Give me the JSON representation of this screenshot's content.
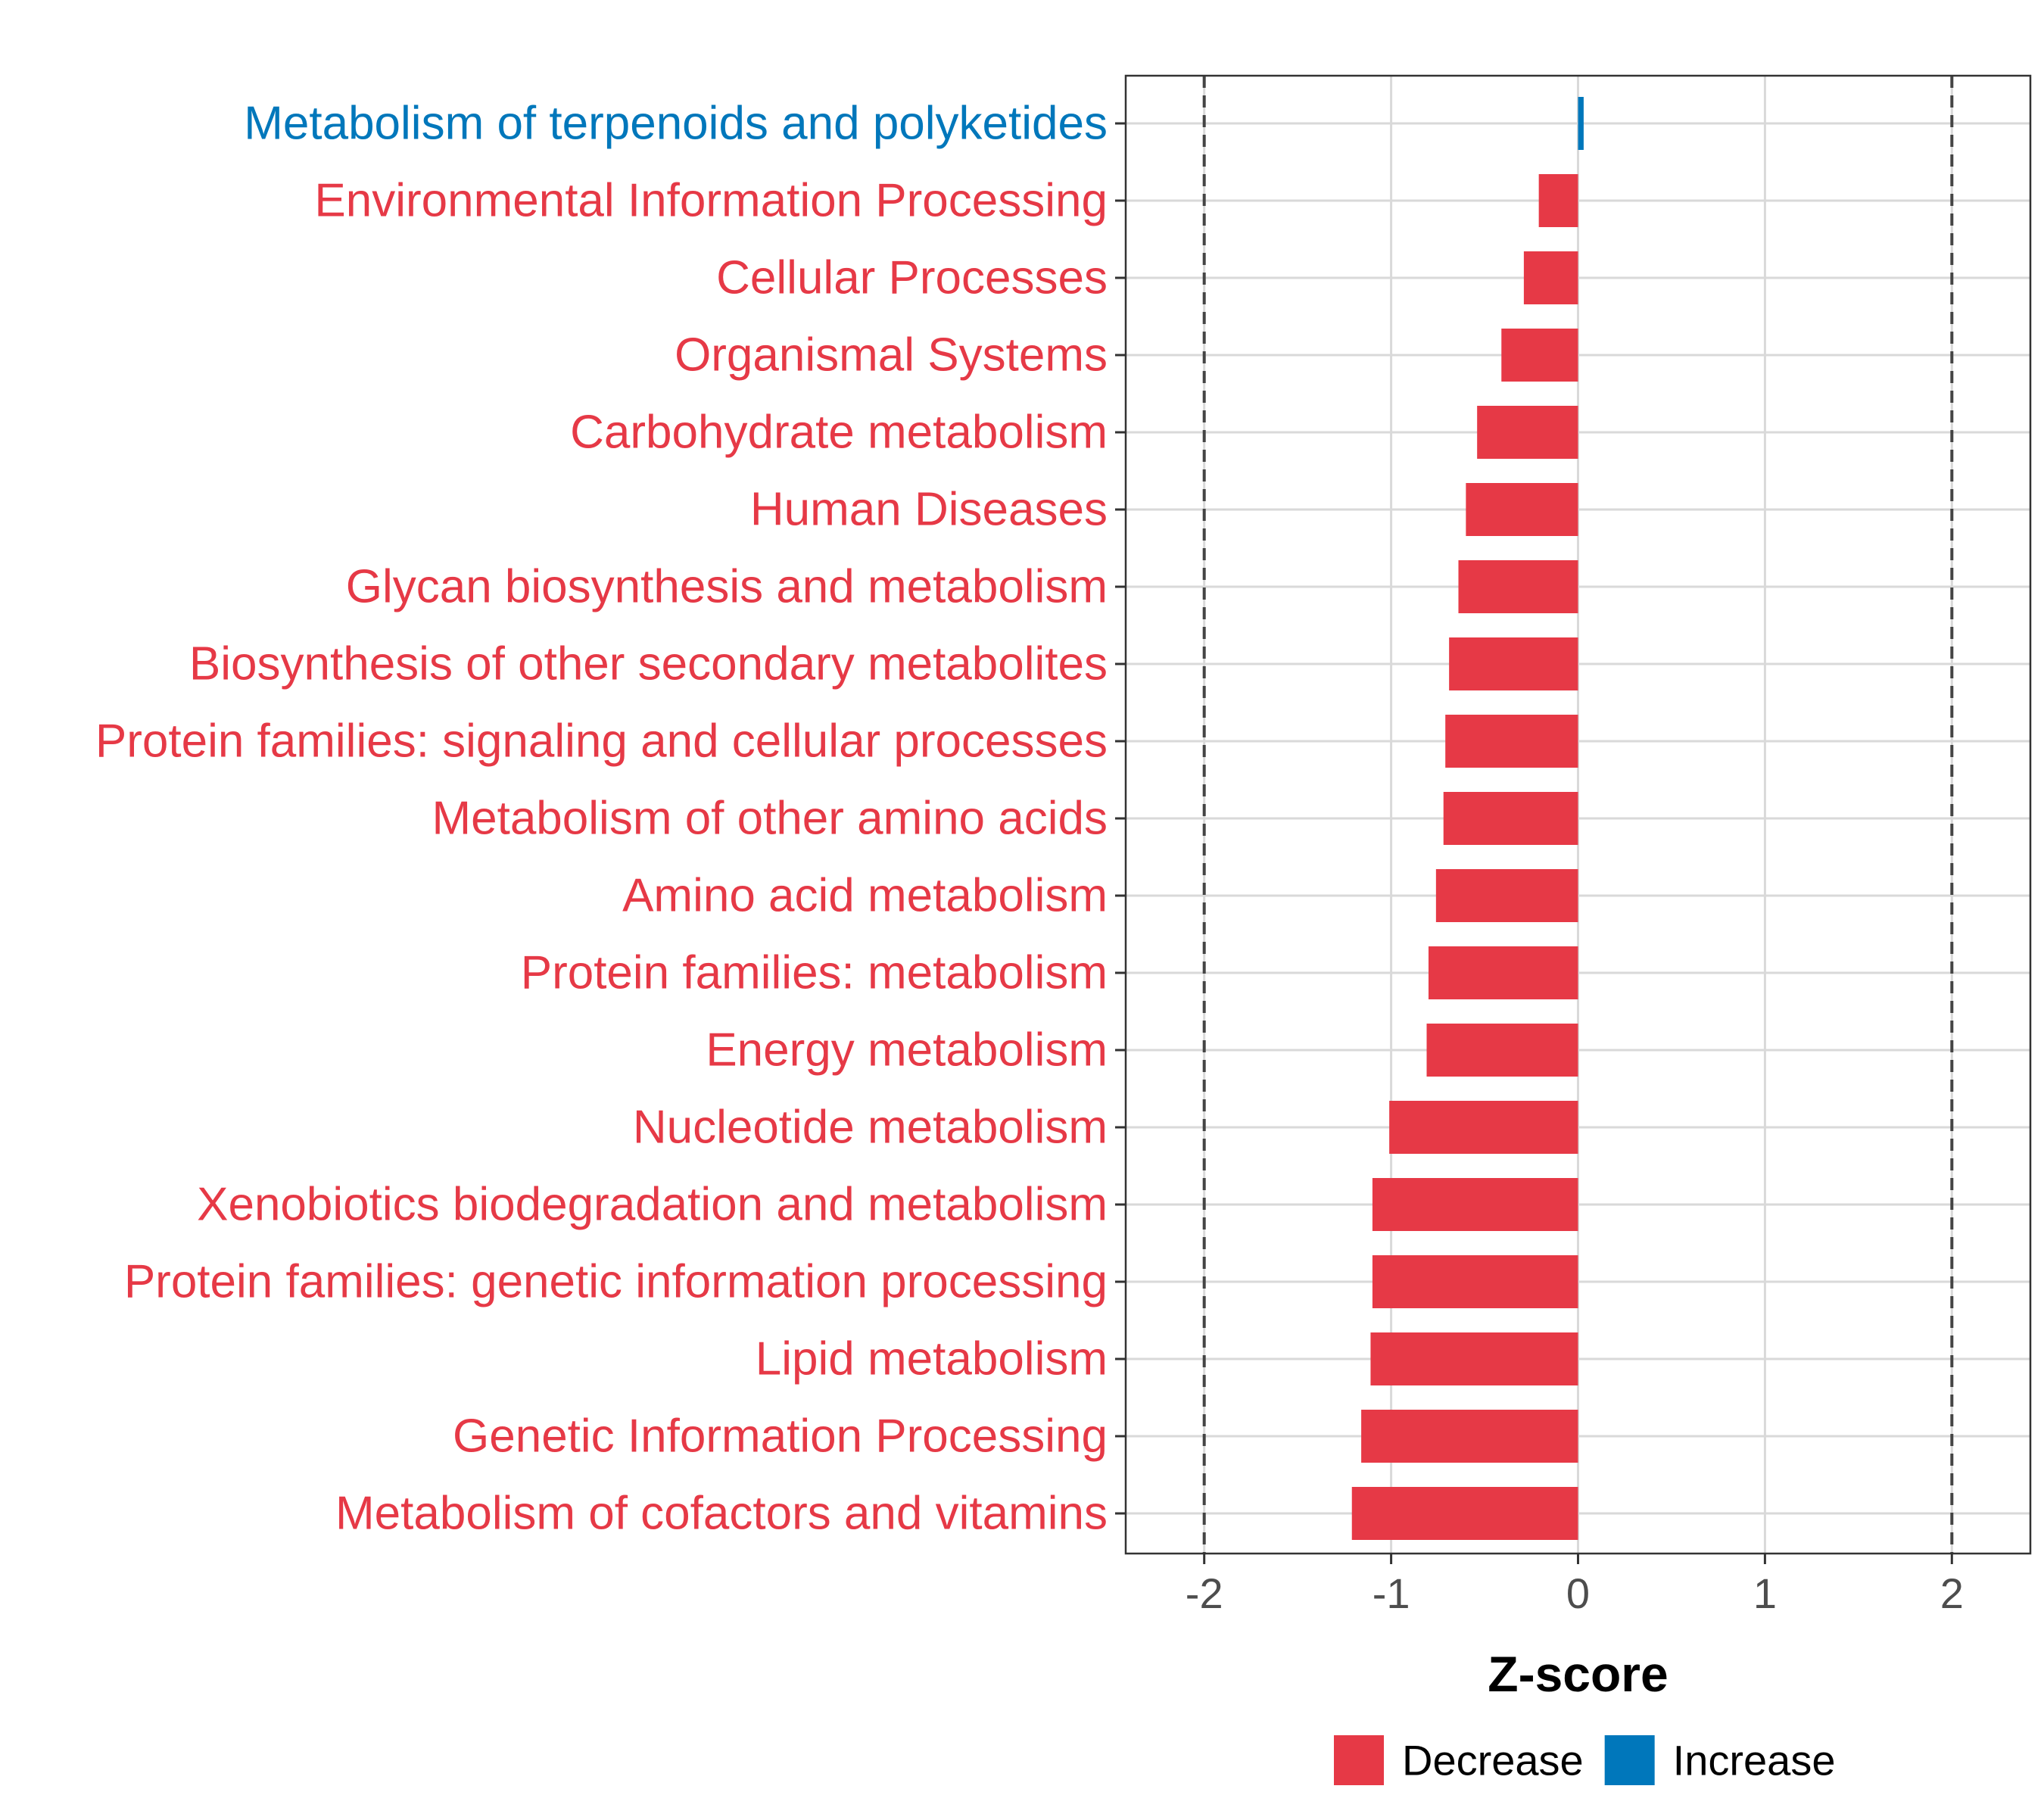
{
  "chart_data": {
    "type": "bar",
    "orientation": "horizontal",
    "title": "",
    "xlabel": "Z-score",
    "ylabel": "",
    "xlim": [
      -2.42,
      2.42
    ],
    "xticks": [
      -2,
      -1,
      0,
      1,
      2
    ],
    "xtick_labels": [
      "-2",
      "-1",
      "0",
      "1",
      "2"
    ],
    "reference_lines": [
      -2,
      2
    ],
    "grid": true,
    "categories": [
      "Metabolism of terpenoids and polyketides",
      "Environmental Information Processing",
      "Cellular Processes",
      "Organismal Systems",
      "Carbohydrate metabolism",
      "Human Diseases",
      "Glycan biosynthesis and metabolism",
      "Biosynthesis of other secondary metabolites",
      "Protein families: signaling and cellular processes",
      "Metabolism of other amino acids",
      "Amino acid metabolism",
      "Protein families: metabolism",
      "Energy metabolism",
      "Nucleotide metabolism",
      "Xenobiotics biodegradation and metabolism",
      "Protein families: genetic information processing",
      "Lipid metabolism",
      "Genetic Information Processing",
      "Metabolism of cofactors and vitamins"
    ],
    "values": [
      0.03,
      -0.21,
      -0.29,
      -0.41,
      -0.54,
      -0.6,
      -0.64,
      -0.69,
      -0.71,
      -0.72,
      -0.76,
      -0.8,
      -0.81,
      -1.01,
      -1.1,
      -1.1,
      -1.11,
      -1.16,
      -1.21
    ],
    "groups": [
      "Increase",
      "Decrease",
      "Decrease",
      "Decrease",
      "Decrease",
      "Decrease",
      "Decrease",
      "Decrease",
      "Decrease",
      "Decrease",
      "Decrease",
      "Decrease",
      "Decrease",
      "Decrease",
      "Decrease",
      "Decrease",
      "Decrease",
      "Decrease",
      "Decrease"
    ],
    "legend": {
      "position": "bottom",
      "entries": [
        {
          "name": "Decrease",
          "color": "#E63946"
        },
        {
          "name": "Increase",
          "color": "#0077BB"
        }
      ]
    }
  }
}
